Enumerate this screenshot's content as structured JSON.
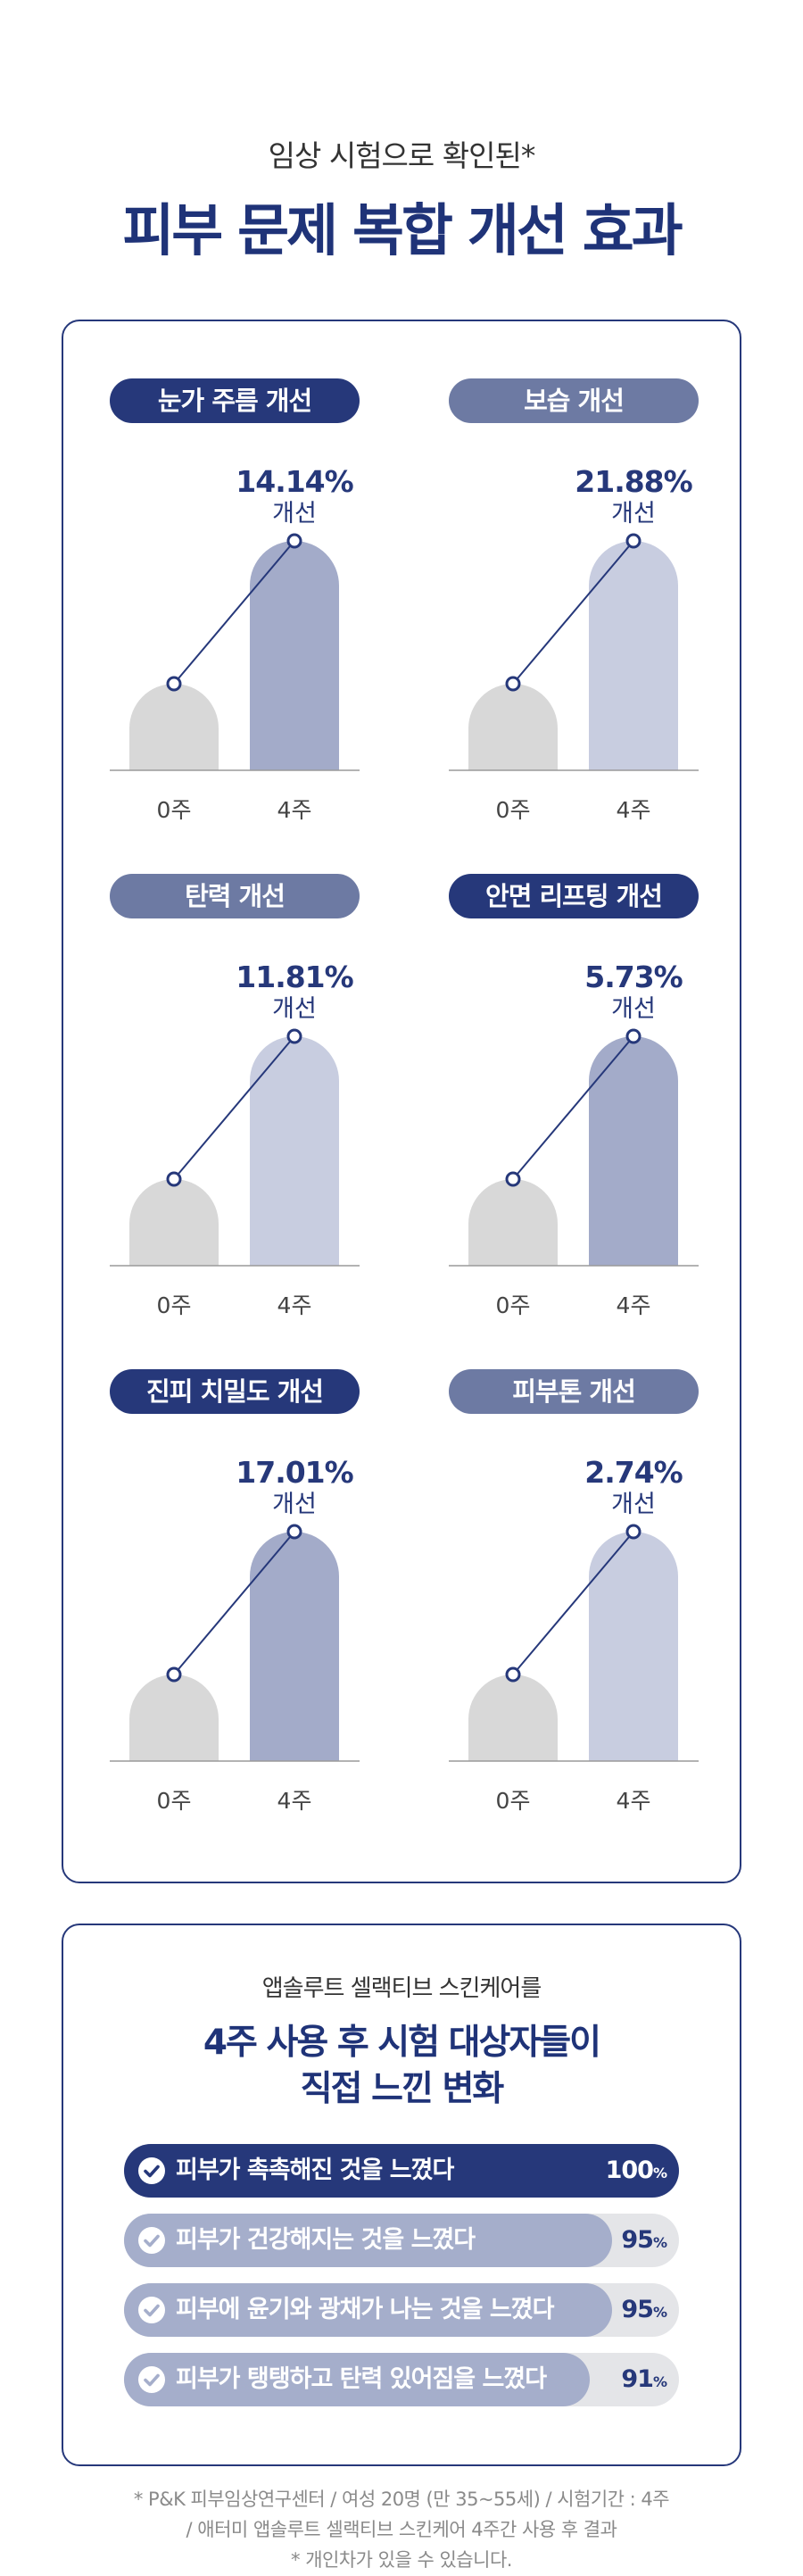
{
  "header": {
    "subtitle": "임상 시험으로 확인된*",
    "title": "피부 문제 복합 개선 효과"
  },
  "colors": {
    "navy": "#26387a",
    "muted_navy": "#6d7aa3",
    "bar_base": "#d8d8d8",
    "bar_dark": "#a3abc9",
    "bar_light": "#c8cde0"
  },
  "chart_data": [
    {
      "type": "bar",
      "title": "눈가 주름 개선",
      "categories": [
        "0주",
        "4주"
      ],
      "value_label": "14.14%",
      "value_sub": "개선",
      "improvement_percent": 14.14,
      "pill_style": "dark",
      "bar_style": "dark"
    },
    {
      "type": "bar",
      "title": "보습 개선",
      "categories": [
        "0주",
        "4주"
      ],
      "value_label": "21.88%",
      "value_sub": "개선",
      "improvement_percent": 21.88,
      "pill_style": "light",
      "bar_style": "light"
    },
    {
      "type": "bar",
      "title": "탄력 개선",
      "categories": [
        "0주",
        "4주"
      ],
      "value_label": "11.81%",
      "value_sub": "개선",
      "improvement_percent": 11.81,
      "pill_style": "light",
      "bar_style": "light"
    },
    {
      "type": "bar",
      "title": "안면 리프팅 개선",
      "categories": [
        "0주",
        "4주"
      ],
      "value_label": "5.73%",
      "value_sub": "개선",
      "improvement_percent": 5.73,
      "pill_style": "dark",
      "bar_style": "dark"
    },
    {
      "type": "bar",
      "title": "진피 치밀도 개선",
      "categories": [
        "0주",
        "4주"
      ],
      "value_label": "17.01%",
      "value_sub": "개선",
      "improvement_percent": 17.01,
      "pill_style": "dark",
      "bar_style": "dark"
    },
    {
      "type": "bar",
      "title": "피부톤 개선",
      "categories": [
        "0주",
        "4주"
      ],
      "value_label": "2.74%",
      "value_sub": "개선",
      "improvement_percent": 2.74,
      "pill_style": "light",
      "bar_style": "light"
    }
  ],
  "survey": {
    "subtitle": "앱솔루트 셀랙티브 스킨케어를",
    "title_line1": "4주 사용 후 시험 대상자들이",
    "title_line2": "직접 느낀 변화",
    "items": [
      {
        "label": "피부가 촉촉해진 것을 느꼈다",
        "percent": 100,
        "value_text": "100",
        "unit": "%",
        "style": "dark"
      },
      {
        "label": "피부가 건강해지는 것을 느꼈다",
        "percent": 95,
        "value_text": "95",
        "unit": "%",
        "style": "light"
      },
      {
        "label": "피부에 윤기와 광채가 나는 것을 느꼈다",
        "percent": 95,
        "value_text": "95",
        "unit": "%",
        "style": "light"
      },
      {
        "label": "피부가 탱탱하고 탄력 있어짐을 느꼈다",
        "percent": 91,
        "value_text": "91",
        "unit": "%",
        "style": "light"
      }
    ]
  },
  "footnotes": {
    "line1": "* P&K 피부임상연구센터 / 여성 20명 (만 35~55세) / 시험기간 : 4주",
    "line2": "/ 애터미 앱솔루트 셀랙티브 스킨케어 4주간 사용 후 결과",
    "line3": "* 개인차가 있을 수 있습니다."
  }
}
